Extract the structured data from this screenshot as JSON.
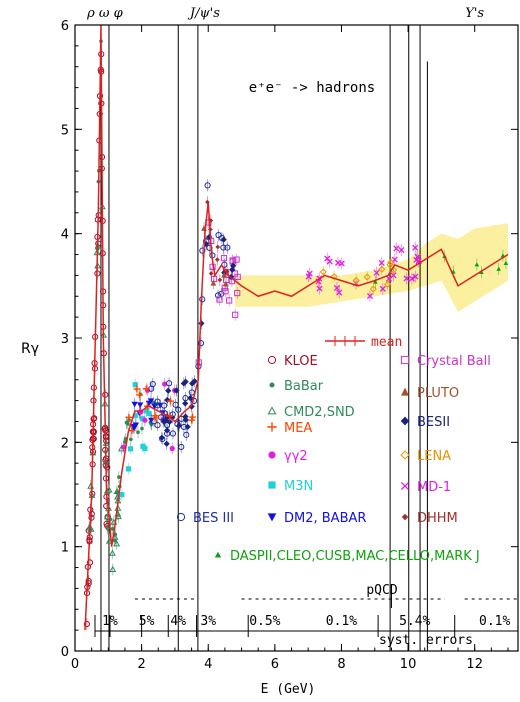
{
  "chart_data": {
    "type": "scatter",
    "title": "e⁺e⁻ -> hadrons",
    "xlabel": "E (GeV)",
    "ylabel": "Rγ",
    "xlim": [
      0,
      13.3
    ],
    "ylim": [
      0,
      6
    ],
    "x_ticks": [
      "0",
      "2",
      "4",
      "6",
      "8",
      "10",
      "12"
    ],
    "x_tick_values": [
      0,
      2,
      4,
      6,
      8,
      10,
      12
    ],
    "y_ticks": [
      "0",
      "1",
      "2",
      "3",
      "4",
      "5",
      "6"
    ],
    "y_tick_values": [
      0,
      1,
      2,
      3,
      4,
      5,
      6
    ],
    "top_labels": [
      {
        "text": "ρ ω φ",
        "x": 0.9
      },
      {
        "text": "J/ψ's",
        "x": 3.9
      },
      {
        "text": "Υ's",
        "x": 12.0
      }
    ],
    "resonances": [
      {
        "x": 0.78,
        "peak": 6.0
      },
      {
        "x": 1.02,
        "peak": 6.0
      },
      {
        "x": 3.1,
        "peak": 6.0
      },
      {
        "x": 3.69,
        "peak": 6.0
      },
      {
        "x": 9.46,
        "peak": 6.0
      },
      {
        "x": 10.02,
        "peak": 6.0
      },
      {
        "x": 10.36,
        "peak": 6.0
      },
      {
        "x": 10.58,
        "peak": 5.65
      }
    ],
    "mean_curve": {
      "name": "mean",
      "x": [
        0.3,
        0.5,
        0.7,
        0.78,
        0.85,
        0.95,
        1.02,
        1.1,
        1.2,
        1.4,
        1.6,
        1.8,
        2.0,
        2.2,
        2.5,
        2.8,
        3.0,
        3.3,
        3.5,
        3.7,
        3.8,
        3.9,
        4.0,
        4.1,
        4.2,
        4.4,
        4.6,
        5.0,
        5.5,
        6.0,
        6.5,
        7.0,
        7.5,
        8.0,
        8.5,
        9.0,
        9.4,
        9.6,
        10.0,
        10.5,
        11.0,
        11.5,
        12.0,
        13.0
      ],
      "y": [
        0.2,
        1.5,
        4.2,
        6.0,
        3.0,
        1.5,
        1.3,
        1.0,
        1.2,
        1.7,
        2.1,
        2.3,
        2.3,
        2.35,
        2.3,
        2.25,
        2.2,
        2.3,
        2.35,
        2.6,
        3.4,
        4.0,
        4.3,
        3.8,
        3.6,
        3.7,
        3.6,
        3.5,
        3.4,
        3.45,
        3.4,
        3.5,
        3.6,
        3.55,
        3.5,
        3.55,
        3.6,
        3.7,
        3.65,
        3.75,
        3.85,
        3.5,
        3.6,
        3.8
      ]
    },
    "band": {
      "name": "pQCD uncertainty band",
      "x": [
        4.8,
        6.0,
        7.0,
        8.0,
        9.0,
        10.0,
        10.5,
        11.0,
        11.5,
        12.0,
        13.0
      ],
      "y_low": [
        3.3,
        3.3,
        3.3,
        3.35,
        3.4,
        3.45,
        3.5,
        3.55,
        3.25,
        3.35,
        3.55
      ],
      "y_high": [
        3.6,
        3.6,
        3.6,
        3.6,
        3.65,
        3.75,
        3.9,
        4.0,
        3.95,
        4.05,
        4.1
      ]
    },
    "series": [
      {
        "name": "KLOE",
        "marker": "circle-open",
        "color": "#a0102a"
      },
      {
        "name": "Crystal Ball",
        "marker": "square-open",
        "color": "#cc33cc"
      },
      {
        "name": "BaBar",
        "marker": "dot",
        "color": "#2e8b57"
      },
      {
        "name": "PLUTO",
        "marker": "triangle-filled",
        "color": "#a0522d"
      },
      {
        "name": "CMD2,SND",
        "marker": "triangle-open",
        "color": "#2e8b57"
      },
      {
        "name": "BESII",
        "marker": "diamond-filled",
        "color": "#1a237e"
      },
      {
        "name": "MEA",
        "marker": "plus",
        "color": "#ff4500"
      },
      {
        "name": "LENA",
        "marker": "diamond-open",
        "color": "#e69500"
      },
      {
        "name": "γγ2",
        "marker": "circle-filled",
        "color": "#e020e0"
      },
      {
        "name": "MD-1",
        "marker": "cross",
        "color": "#e020e0"
      },
      {
        "name": "M3N",
        "marker": "square-filled",
        "color": "#20d0d8"
      },
      {
        "name": "DHHM",
        "marker": "diamond-filled-small",
        "color": "#a0302a"
      },
      {
        "name": "BES III",
        "marker": "circle-open",
        "color": "#2030a0"
      },
      {
        "name": "DM2, BABAR",
        "marker": "triangle-down-filled",
        "color": "#1010e0"
      },
      {
        "name": "DASPII,CLEO,CUSB,MAC,CELLO,MARK J",
        "marker": "triangle-filled-small",
        "color": "#10a010"
      }
    ],
    "pqcd_label": "pQCD",
    "pqcd_regions": [
      [
        1.8,
        3.7
      ],
      [
        5.0,
        11.1
      ],
      [
        11.7,
        13.3
      ]
    ],
    "syst_errors": {
      "label": "syst. errors",
      "boundaries": [
        0.6,
        1.05,
        2.0,
        2.8,
        3.65,
        5.2,
        9.1,
        11.4,
        13.3
      ],
      "labels": [
        "1%",
        "5%",
        "4%",
        "3%",
        "0.5%",
        "0.1%",
        "5.4%",
        "0.1%"
      ],
      "label_x": [
        1.05,
        2.15,
        3.1,
        4.0,
        5.7,
        8.0,
        10.2,
        12.6
      ]
    }
  }
}
